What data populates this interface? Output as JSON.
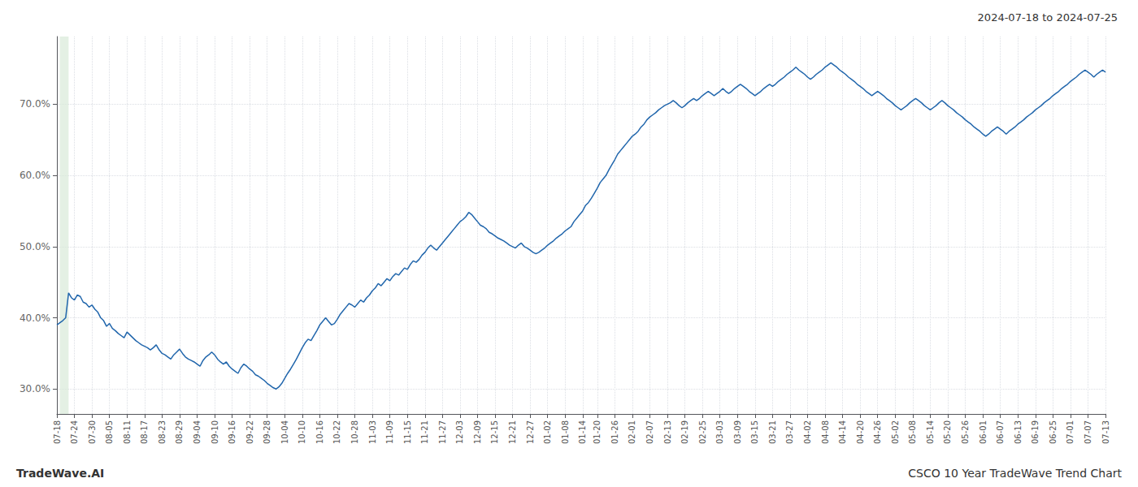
{
  "chart_data": {
    "type": "line",
    "title": "2024-07-18 to 2024-07-25",
    "annotations": [
      "TradeWave.AI",
      "CSCO 10 Year TradeWave Trend Chart"
    ],
    "color": "#2166ac",
    "grid": true,
    "ylim": [
      0.265,
      0.795
    ],
    "yticks": [
      {
        "value": 0.3,
        "label": "30.0%"
      },
      {
        "value": 0.4,
        "label": "40.0%"
      },
      {
        "value": 0.5,
        "label": "50.0%"
      },
      {
        "value": 0.6,
        "label": "60.0%"
      },
      {
        "value": 0.7,
        "label": "70.0%"
      }
    ],
    "highlight": {
      "start": 1,
      "end": 4,
      "color": "#d8ead8"
    },
    "categories": [
      "07-18",
      null,
      null,
      null,
      null,
      null,
      "07-24",
      null,
      null,
      null,
      null,
      null,
      "07-30",
      null,
      null,
      null,
      null,
      null,
      "08-05",
      null,
      null,
      null,
      null,
      null,
      "08-11",
      null,
      null,
      null,
      null,
      null,
      "08-17",
      null,
      null,
      null,
      null,
      null,
      "08-23",
      null,
      null,
      null,
      null,
      null,
      "08-29",
      null,
      null,
      null,
      null,
      null,
      "09-04",
      null,
      null,
      null,
      null,
      null,
      "09-10",
      null,
      null,
      null,
      null,
      null,
      "09-16",
      null,
      null,
      null,
      null,
      null,
      "09-22",
      null,
      null,
      null,
      null,
      null,
      "09-28",
      null,
      null,
      null,
      null,
      null,
      "10-04",
      null,
      null,
      null,
      null,
      null,
      "10-10",
      null,
      null,
      null,
      null,
      null,
      "10-16",
      null,
      null,
      null,
      null,
      null,
      "10-22",
      null,
      null,
      null,
      null,
      null,
      "10-28",
      null,
      null,
      null,
      null,
      null,
      "11-03",
      null,
      null,
      null,
      null,
      null,
      "11-09",
      null,
      null,
      null,
      null,
      null,
      "11-15",
      null,
      null,
      null,
      null,
      null,
      "11-21",
      null,
      null,
      null,
      null,
      null,
      "11-27",
      null,
      null,
      null,
      null,
      null,
      "12-03",
      null,
      null,
      null,
      null,
      null,
      "12-09",
      null,
      null,
      null,
      null,
      null,
      "12-15",
      null,
      null,
      null,
      null,
      null,
      "12-21",
      null,
      null,
      null,
      null,
      null,
      "12-27",
      null,
      null,
      null,
      null,
      null,
      "01-02",
      null,
      null,
      null,
      null,
      null,
      "01-08",
      null,
      null,
      null,
      null,
      null,
      "01-14",
      null,
      null,
      null,
      null,
      "01-20",
      null,
      null,
      null,
      null,
      null,
      "01-26",
      null,
      null,
      null,
      null,
      null,
      "02-01",
      null,
      null,
      null,
      null,
      null,
      "02-07",
      null,
      null,
      null,
      null,
      null,
      "02-13",
      null,
      null,
      null,
      null,
      null,
      "02-19",
      null,
      null,
      null,
      null,
      null,
      "02-25",
      null,
      null,
      null,
      null,
      null,
      "03-03",
      null,
      null,
      null,
      null,
      null,
      "03-09",
      null,
      null,
      null,
      null,
      null,
      "03-15",
      null,
      null,
      null,
      null,
      null,
      "03-21",
      null,
      null,
      null,
      null,
      null,
      "03-27",
      null,
      null,
      null,
      null,
      null,
      "04-02",
      null,
      null,
      null,
      null,
      null,
      "04-08",
      null,
      null,
      null,
      null,
      null,
      "04-14",
      null,
      null,
      null,
      null,
      null,
      "04-20",
      null,
      null,
      null,
      null,
      null,
      "04-26",
      null,
      null,
      null,
      null,
      null,
      "05-02",
      null,
      null,
      null,
      null,
      null,
      "05-08",
      null,
      null,
      null,
      null,
      null,
      "05-14",
      null,
      null,
      null,
      null,
      null,
      "05-20",
      null,
      null,
      null,
      null,
      null,
      "05-26",
      null,
      null,
      null,
      null,
      null,
      "06-01",
      null,
      null,
      null,
      null,
      null,
      "06-07",
      null,
      null,
      null,
      null,
      null,
      "06-13",
      null,
      null,
      null,
      null,
      null,
      "06-19",
      null,
      null,
      null,
      null,
      null,
      "06-25",
      null,
      null,
      null,
      null,
      null,
      "07-01",
      null,
      null,
      null,
      null,
      null,
      "07-07",
      null,
      null,
      null,
      null,
      null,
      "07-13"
    ],
    "values": [
      0.39,
      0.393,
      0.396,
      0.4,
      0.435,
      0.428,
      0.425,
      0.432,
      0.43,
      0.422,
      0.42,
      0.415,
      0.418,
      0.412,
      0.408,
      0.4,
      0.396,
      0.388,
      0.392,
      0.385,
      0.382,
      0.378,
      0.375,
      0.372,
      0.38,
      0.376,
      0.372,
      0.368,
      0.365,
      0.362,
      0.36,
      0.358,
      0.355,
      0.358,
      0.362,
      0.355,
      0.35,
      0.348,
      0.345,
      0.342,
      0.348,
      0.352,
      0.356,
      0.35,
      0.345,
      0.342,
      0.34,
      0.338,
      0.335,
      0.332,
      0.34,
      0.345,
      0.348,
      0.352,
      0.348,
      0.342,
      0.338,
      0.335,
      0.338,
      0.332,
      0.328,
      0.325,
      0.322,
      0.33,
      0.335,
      0.332,
      0.328,
      0.325,
      0.32,
      0.318,
      0.315,
      0.312,
      0.308,
      0.305,
      0.302,
      0.3,
      0.303,
      0.308,
      0.315,
      0.322,
      0.328,
      0.335,
      0.342,
      0.35,
      0.358,
      0.365,
      0.37,
      0.368,
      0.375,
      0.382,
      0.39,
      0.395,
      0.4,
      0.395,
      0.39,
      0.392,
      0.398,
      0.405,
      0.41,
      0.415,
      0.42,
      0.418,
      0.415,
      0.42,
      0.425,
      0.422,
      0.428,
      0.432,
      0.438,
      0.442,
      0.448,
      0.445,
      0.45,
      0.455,
      0.452,
      0.458,
      0.462,
      0.46,
      0.465,
      0.47,
      0.468,
      0.475,
      0.48,
      0.478,
      0.482,
      0.488,
      0.492,
      0.498,
      0.502,
      0.498,
      0.495,
      0.5,
      0.505,
      0.51,
      0.515,
      0.52,
      0.525,
      0.53,
      0.535,
      0.538,
      0.542,
      0.548,
      0.545,
      0.54,
      0.535,
      0.53,
      0.528,
      0.525,
      0.52,
      0.518,
      0.515,
      0.512,
      0.51,
      0.508,
      0.505,
      0.502,
      0.5,
      0.498,
      0.502,
      0.505,
      0.5,
      0.498,
      0.495,
      0.492,
      0.49,
      0.492,
      0.495,
      0.498,
      0.502,
      0.505,
      0.508,
      0.512,
      0.515,
      0.518,
      0.522,
      0.525,
      0.528,
      0.535,
      0.54,
      0.545,
      0.55,
      0.558,
      0.562,
      0.568,
      0.575,
      0.582,
      0.59,
      0.595,
      0.6,
      0.608,
      0.615,
      0.622,
      0.63,
      0.635,
      0.64,
      0.645,
      0.65,
      0.655,
      0.658,
      0.662,
      0.668,
      0.672,
      0.678,
      0.682,
      0.685,
      0.688,
      0.692,
      0.695,
      0.698,
      0.7,
      0.702,
      0.705,
      0.702,
      0.698,
      0.695,
      0.698,
      0.702,
      0.705,
      0.708,
      0.705,
      0.708,
      0.712,
      0.715,
      0.718,
      0.715,
      0.712,
      0.715,
      0.718,
      0.722,
      0.718,
      0.715,
      0.718,
      0.722,
      0.725,
      0.728,
      0.725,
      0.722,
      0.718,
      0.715,
      0.712,
      0.715,
      0.718,
      0.722,
      0.725,
      0.728,
      0.725,
      0.728,
      0.732,
      0.735,
      0.738,
      0.742,
      0.745,
      0.748,
      0.752,
      0.748,
      0.745,
      0.742,
      0.738,
      0.735,
      0.738,
      0.742,
      0.745,
      0.748,
      0.752,
      0.755,
      0.758,
      0.755,
      0.752,
      0.748,
      0.745,
      0.742,
      0.738,
      0.735,
      0.732,
      0.728,
      0.725,
      0.722,
      0.718,
      0.715,
      0.712,
      0.715,
      0.718,
      0.715,
      0.712,
      0.708,
      0.705,
      0.702,
      0.698,
      0.695,
      0.692,
      0.695,
      0.698,
      0.702,
      0.705,
      0.708,
      0.705,
      0.702,
      0.698,
      0.695,
      0.692,
      0.695,
      0.698,
      0.702,
      0.705,
      0.702,
      0.698,
      0.695,
      0.692,
      0.688,
      0.685,
      0.682,
      0.678,
      0.675,
      0.672,
      0.668,
      0.665,
      0.662,
      0.658,
      0.655,
      0.658,
      0.662,
      0.665,
      0.668,
      0.665,
      0.662,
      0.658,
      0.662,
      0.665,
      0.668,
      0.672,
      0.675,
      0.678,
      0.682,
      0.685,
      0.688,
      0.692,
      0.695,
      0.698,
      0.702,
      0.705,
      0.708,
      0.712,
      0.715,
      0.718,
      0.722,
      0.725,
      0.728,
      0.732,
      0.735,
      0.738,
      0.742,
      0.745,
      0.748,
      0.745,
      0.742,
      0.738,
      0.742,
      0.745,
      0.748,
      0.745
    ]
  }
}
